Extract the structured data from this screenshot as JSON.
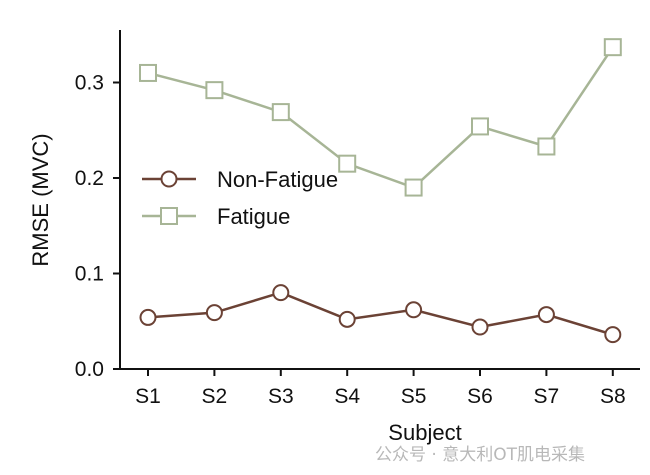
{
  "chart_data": {
    "type": "line",
    "title": "",
    "xlabel": "Subject",
    "ylabel": "RMSE (MVC)",
    "categories": [
      "S1",
      "S2",
      "S3",
      "S4",
      "S5",
      "S6",
      "S7",
      "S8"
    ],
    "ylim": [
      0,
      0.355
    ],
    "yticks": [
      0.0,
      0.1,
      0.2,
      0.3
    ],
    "ytick_labels": [
      "0.0",
      "0.1",
      "0.2",
      "0.3"
    ],
    "grid": false,
    "legend_placement": "center-left",
    "series": [
      {
        "name": "Non-Fatigue",
        "marker": "circle",
        "color": "#6b4235",
        "values": [
          0.054,
          0.059,
          0.08,
          0.052,
          0.062,
          0.044,
          0.057,
          0.036
        ]
      },
      {
        "name": "Fatigue",
        "marker": "square",
        "color": "#a7b596",
        "values": [
          0.31,
          0.292,
          0.269,
          0.215,
          0.19,
          0.254,
          0.233,
          0.337
        ]
      }
    ]
  },
  "watermark": "公众号 · 意大利OT肌电采集"
}
